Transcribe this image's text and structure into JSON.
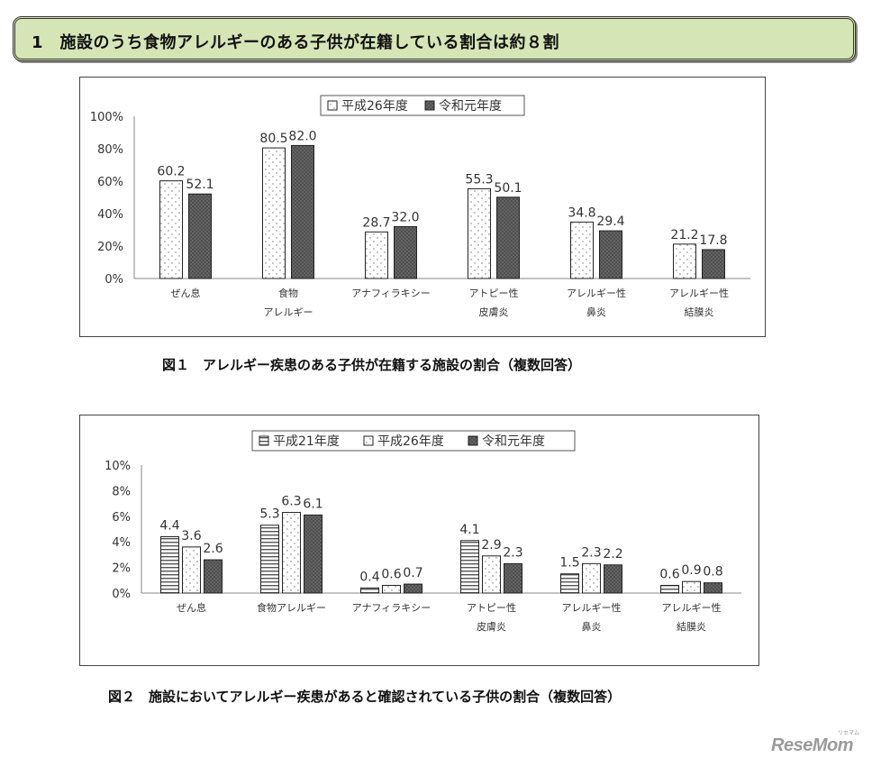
{
  "header": {
    "title": "1　施設のうち食物アレルギーのある子供が在籍している割合は約８割"
  },
  "figures": [
    {
      "caption": "図１　アレルギー疾患のある子供が在籍する施設の割合（複数回答）",
      "chart_data": {
        "type": "bar",
        "categories": [
          [
            "ぜん息"
          ],
          [
            "食物",
            "アレルギー"
          ],
          [
            "アナフィラキシー"
          ],
          [
            "アトピー性",
            "皮膚炎"
          ],
          [
            "アレルギー性",
            "鼻炎"
          ],
          [
            "アレルギー性",
            "結膜炎"
          ]
        ],
        "series": [
          {
            "name": "平成26年度",
            "pattern": "dots-white",
            "values": [
              60.2,
              80.5,
              28.7,
              55.3,
              34.8,
              21.2
            ]
          },
          {
            "name": "令和元年度",
            "pattern": "dots-dark",
            "values": [
              52.1,
              82.0,
              32.0,
              50.1,
              29.4,
              17.8
            ]
          }
        ],
        "ylim": [
          0,
          100
        ],
        "yticks": [
          0,
          20,
          40,
          60,
          80,
          100
        ],
        "ytick_labels": [
          "0%",
          "20%",
          "40%",
          "60%",
          "80%",
          "100%"
        ],
        "value_labels": [
          [
            "60.2",
            "80.5",
            "28.7",
            "55.3",
            "34.8",
            "21.2"
          ],
          [
            "52.1",
            "82.0",
            "32.0",
            "50.1",
            "29.4",
            "17.8"
          ]
        ],
        "legend_position": "top-center",
        "grid": false
      }
    },
    {
      "caption": "図２　施設においてアレルギー疾患があると確認されている子供の割合（複数回答）",
      "chart_data": {
        "type": "bar",
        "categories": [
          [
            "ぜん息"
          ],
          [
            "食物アレルギー"
          ],
          [
            "アナフィラキシー"
          ],
          [
            "アトピー性",
            "皮膚炎"
          ],
          [
            "アレルギー性",
            "鼻炎"
          ],
          [
            "アレルギー性",
            "結膜炎"
          ]
        ],
        "series": [
          {
            "name": "平成21年度",
            "pattern": "hstripes",
            "values": [
              4.4,
              5.3,
              0.4,
              4.1,
              1.5,
              0.6
            ]
          },
          {
            "name": "平成26年度",
            "pattern": "dots-white",
            "values": [
              3.6,
              6.3,
              0.6,
              2.9,
              2.3,
              0.9
            ]
          },
          {
            "name": "令和元年度",
            "pattern": "dots-dark",
            "values": [
              2.6,
              6.1,
              0.7,
              2.3,
              2.2,
              0.8
            ]
          }
        ],
        "ylim": [
          0,
          10
        ],
        "yticks": [
          0,
          2,
          4,
          6,
          8,
          10
        ],
        "ytick_labels": [
          "0%",
          "2%",
          "4%",
          "6%",
          "8%",
          "10%"
        ],
        "value_labels": [
          [
            "4.4",
            "5.3",
            "0.4",
            "4.1",
            "1.5",
            "0.6"
          ],
          [
            "3.6",
            "6.3",
            "0.6",
            "2.9",
            "2.3",
            "0.9"
          ],
          [
            "2.6",
            "6.1",
            "0.7",
            "2.3",
            "2.2",
            "0.8"
          ]
        ],
        "legend_position": "top-center",
        "grid": false
      }
    }
  ],
  "logo": {
    "text": "ReseMom",
    "sub": "リセマム"
  }
}
